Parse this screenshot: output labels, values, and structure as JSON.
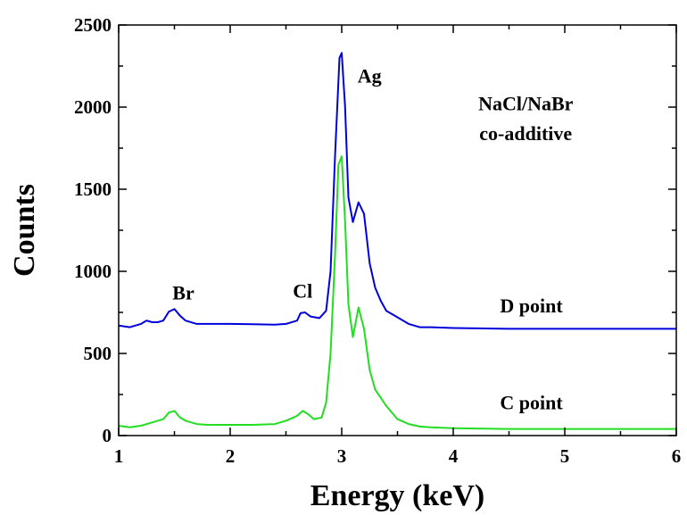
{
  "chart_data": {
    "type": "line",
    "xlabel": "Energy (keV)",
    "ylabel": "Counts",
    "xlim": [
      1,
      6
    ],
    "ylim": [
      0,
      2500
    ],
    "x_ticks": [
      1,
      2,
      3,
      4,
      5,
      6
    ],
    "y_ticks": [
      0,
      500,
      1000,
      1500,
      2000,
      2500
    ],
    "grid": false,
    "series": [
      {
        "name": "D point",
        "color": "#0000dd",
        "points": [
          [
            1.0,
            670
          ],
          [
            1.1,
            660
          ],
          [
            1.2,
            680
          ],
          [
            1.25,
            700
          ],
          [
            1.3,
            690
          ],
          [
            1.35,
            690
          ],
          [
            1.4,
            700
          ],
          [
            1.45,
            755
          ],
          [
            1.5,
            770
          ],
          [
            1.55,
            730
          ],
          [
            1.6,
            700
          ],
          [
            1.7,
            680
          ],
          [
            1.8,
            680
          ],
          [
            2.0,
            680
          ],
          [
            2.2,
            678
          ],
          [
            2.4,
            675
          ],
          [
            2.5,
            680
          ],
          [
            2.6,
            700
          ],
          [
            2.63,
            745
          ],
          [
            2.67,
            750
          ],
          [
            2.72,
            725
          ],
          [
            2.8,
            715
          ],
          [
            2.86,
            760
          ],
          [
            2.9,
            1000
          ],
          [
            2.94,
            1700
          ],
          [
            2.98,
            2300
          ],
          [
            3.0,
            2330
          ],
          [
            3.03,
            2000
          ],
          [
            3.06,
            1450
          ],
          [
            3.1,
            1300
          ],
          [
            3.15,
            1420
          ],
          [
            3.2,
            1350
          ],
          [
            3.25,
            1050
          ],
          [
            3.3,
            900
          ],
          [
            3.35,
            820
          ],
          [
            3.4,
            760
          ],
          [
            3.5,
            720
          ],
          [
            3.6,
            680
          ],
          [
            3.7,
            660
          ],
          [
            3.8,
            660
          ],
          [
            4.0,
            655
          ],
          [
            4.5,
            650
          ],
          [
            5.0,
            650
          ],
          [
            5.5,
            650
          ],
          [
            6.0,
            650
          ]
        ]
      },
      {
        "name": "C point",
        "color": "#22dd22",
        "points": [
          [
            1.0,
            60
          ],
          [
            1.1,
            50
          ],
          [
            1.2,
            60
          ],
          [
            1.3,
            80
          ],
          [
            1.4,
            100
          ],
          [
            1.45,
            140
          ],
          [
            1.5,
            150
          ],
          [
            1.55,
            110
          ],
          [
            1.6,
            90
          ],
          [
            1.7,
            70
          ],
          [
            1.8,
            65
          ],
          [
            2.0,
            65
          ],
          [
            2.2,
            65
          ],
          [
            2.4,
            70
          ],
          [
            2.5,
            90
          ],
          [
            2.6,
            120
          ],
          [
            2.65,
            150
          ],
          [
            2.7,
            130
          ],
          [
            2.75,
            100
          ],
          [
            2.82,
            110
          ],
          [
            2.86,
            200
          ],
          [
            2.9,
            500
          ],
          [
            2.94,
            1100
          ],
          [
            2.97,
            1650
          ],
          [
            3.0,
            1700
          ],
          [
            3.03,
            1300
          ],
          [
            3.06,
            800
          ],
          [
            3.1,
            600
          ],
          [
            3.15,
            780
          ],
          [
            3.2,
            650
          ],
          [
            3.25,
            400
          ],
          [
            3.3,
            280
          ],
          [
            3.35,
            230
          ],
          [
            3.4,
            180
          ],
          [
            3.5,
            100
          ],
          [
            3.6,
            70
          ],
          [
            3.7,
            55
          ],
          [
            3.8,
            50
          ],
          [
            4.0,
            45
          ],
          [
            4.5,
            40
          ],
          [
            5.0,
            40
          ],
          [
            5.5,
            40
          ],
          [
            6.0,
            40
          ]
        ]
      }
    ],
    "annotations": [
      {
        "text": "Br",
        "x": 1.58,
        "y": 830
      },
      {
        "text": "Cl",
        "x": 2.65,
        "y": 840
      },
      {
        "text": "Ag",
        "x": 3.25,
        "y": 2150
      },
      {
        "text": "NaCl/NaBr",
        "x": 4.65,
        "y": 1980
      },
      {
        "text": "co-additive",
        "x": 4.65,
        "y": 1800
      },
      {
        "text": "D point",
        "x": 4.7,
        "y": 750
      },
      {
        "text": "C point",
        "x": 4.7,
        "y": 160
      }
    ]
  }
}
